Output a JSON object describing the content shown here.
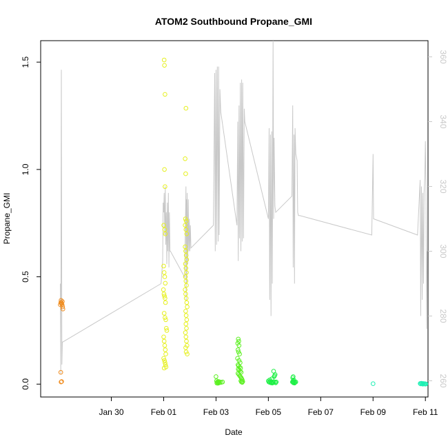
{
  "chart_data": {
    "type": "scatter",
    "title": "ATOM2 Southbound Propane_GMI",
    "xlabel": "Date",
    "ylabel": "Propane_GMI",
    "x_unit": "days after Jan 30",
    "xlim": [
      -2.7,
      12.1
    ],
    "ylim": [
      -0.06,
      1.6
    ],
    "x_ticks": [
      {
        "x": 0,
        "label": "Jan 30"
      },
      {
        "x": 2,
        "label": "Feb 01"
      },
      {
        "x": 4,
        "label": "Feb 03"
      },
      {
        "x": 6,
        "label": "Feb 05"
      },
      {
        "x": 8,
        "label": "Feb 07"
      },
      {
        "x": 10,
        "label": "Feb 09"
      },
      {
        "x": 12,
        "label": "Feb 11"
      }
    ],
    "y_ticks": [
      {
        "y": 0.0,
        "label": "0.0"
      },
      {
        "y": 0.5,
        "label": "0.5"
      },
      {
        "y": 1.0,
        "label": "1.0"
      },
      {
        "y": 1.5,
        "label": "1.5"
      }
    ],
    "y2_lim": [
      255,
      365
    ],
    "y2_ticks": [
      {
        "y": 260,
        "label": "260"
      },
      {
        "y": 280,
        "label": "280"
      },
      {
        "y": 300,
        "label": "300"
      },
      {
        "y": 320,
        "label": "320"
      },
      {
        "y": 340,
        "label": "340"
      },
      {
        "y": 360,
        "label": "360"
      }
    ],
    "grid": false,
    "colors": {
      "line": "#c8c8c8",
      "axis": "#000000",
      "right_axis": "#c8c8c8"
    },
    "series": [
      {
        "color": "#f08c1e",
        "points": [
          [
            -1.95,
            0.37
          ],
          [
            -1.93,
            0.38
          ],
          [
            -1.92,
            0.39
          ],
          [
            -1.91,
            0.38
          ],
          [
            -1.9,
            0.375
          ],
          [
            -1.88,
            0.37
          ],
          [
            -1.87,
            0.385
          ],
          [
            -1.86,
            0.36
          ],
          [
            -1.85,
            0.35
          ],
          [
            -1.93,
            0.055
          ],
          [
            -1.92,
            0.01
          ],
          [
            -1.9,
            0.012
          ]
        ]
      },
      {
        "color": "#e6f01e",
        "points": [
          [
            2.02,
            1.51
          ],
          [
            2.03,
            1.485
          ],
          [
            2.05,
            1.35
          ],
          [
            2.03,
            1.0
          ],
          [
            2.05,
            0.92
          ],
          [
            2.0,
            0.74
          ],
          [
            2.04,
            0.72
          ],
          [
            2.06,
            0.7
          ],
          [
            2.0,
            0.55
          ],
          [
            2.02,
            0.52
          ],
          [
            2.04,
            0.5
          ],
          [
            2.06,
            0.47
          ],
          [
            1.99,
            0.44
          ],
          [
            2.01,
            0.42
          ],
          [
            2.03,
            0.41
          ],
          [
            2.05,
            0.4
          ],
          [
            2.07,
            0.38
          ],
          [
            2.02,
            0.33
          ],
          [
            2.05,
            0.31
          ],
          [
            2.08,
            0.3
          ],
          [
            2.1,
            0.26
          ],
          [
            2.12,
            0.25
          ],
          [
            2.0,
            0.22
          ],
          [
            2.02,
            0.2
          ],
          [
            2.04,
            0.18
          ],
          [
            2.06,
            0.16
          ],
          [
            2.08,
            0.14
          ],
          [
            2.0,
            0.12
          ],
          [
            2.03,
            0.11
          ],
          [
            2.05,
            0.1
          ],
          [
            2.07,
            0.09
          ],
          [
            2.09,
            0.08
          ],
          [
            2.02,
            0.075
          ],
          [
            2.85,
            1.285
          ],
          [
            2.82,
            1.05
          ],
          [
            2.84,
            0.98
          ],
          [
            2.83,
            0.77
          ],
          [
            2.86,
            0.76
          ],
          [
            2.82,
            0.74
          ],
          [
            2.85,
            0.72
          ],
          [
            2.88,
            0.7
          ],
          [
            2.82,
            0.64
          ],
          [
            2.84,
            0.62
          ],
          [
            2.86,
            0.6
          ],
          [
            2.88,
            0.58
          ],
          [
            2.83,
            0.56
          ],
          [
            2.85,
            0.54
          ],
          [
            2.87,
            0.52
          ],
          [
            2.83,
            0.5
          ],
          [
            2.85,
            0.48
          ],
          [
            2.87,
            0.46
          ],
          [
            2.82,
            0.44
          ],
          [
            2.84,
            0.42
          ],
          [
            2.86,
            0.4
          ],
          [
            2.88,
            0.38
          ],
          [
            2.9,
            0.36
          ],
          [
            2.84,
            0.34
          ],
          [
            2.86,
            0.32
          ],
          [
            2.88,
            0.3
          ],
          [
            2.85,
            0.28
          ],
          [
            2.87,
            0.26
          ],
          [
            2.83,
            0.24
          ],
          [
            2.85,
            0.22
          ],
          [
            2.87,
            0.2
          ],
          [
            2.89,
            0.18
          ],
          [
            2.84,
            0.17
          ],
          [
            2.86,
            0.15
          ],
          [
            2.9,
            0.14
          ]
        ]
      },
      {
        "color": "#5af01e",
        "points": [
          [
            4.0,
            0.035
          ],
          [
            4.02,
            0.015
          ],
          [
            4.05,
            0.01
          ],
          [
            4.08,
            0.008
          ],
          [
            4.1,
            0.012
          ],
          [
            4.12,
            0.006
          ],
          [
            4.15,
            0.01
          ],
          [
            4.2,
            0.008
          ],
          [
            4.25,
            0.01
          ],
          [
            4.03,
            0.005
          ],
          [
            4.07,
            0.004
          ],
          [
            4.85,
            0.21
          ],
          [
            4.87,
            0.2
          ],
          [
            4.83,
            0.19
          ],
          [
            4.88,
            0.18
          ],
          [
            4.84,
            0.16
          ],
          [
            4.86,
            0.15
          ],
          [
            4.9,
            0.14
          ],
          [
            4.82,
            0.12
          ],
          [
            4.88,
            0.11
          ],
          [
            4.92,
            0.1
          ],
          [
            4.84,
            0.09
          ],
          [
            4.86,
            0.085
          ],
          [
            4.9,
            0.08
          ],
          [
            4.94,
            0.075
          ],
          [
            4.85,
            0.07
          ],
          [
            4.88,
            0.065
          ],
          [
            4.92,
            0.06
          ],
          [
            4.96,
            0.055
          ],
          [
            4.84,
            0.05
          ],
          [
            4.87,
            0.045
          ],
          [
            4.9,
            0.04
          ],
          [
            4.93,
            0.035
          ],
          [
            4.96,
            0.03
          ],
          [
            4.98,
            0.025
          ],
          [
            5.0,
            0.02
          ],
          [
            4.95,
            0.015
          ],
          [
            4.97,
            0.01
          ],
          [
            5.0,
            0.008
          ],
          [
            5.02,
            0.012
          ]
        ]
      },
      {
        "color": "#1ef046",
        "points": [
          [
            6.0,
            0.015
          ],
          [
            6.02,
            0.01
          ],
          [
            6.05,
            0.008
          ],
          [
            6.08,
            0.012
          ],
          [
            6.1,
            0.006
          ],
          [
            6.12,
            0.01
          ],
          [
            6.15,
            0.005
          ],
          [
            6.18,
            0.01
          ],
          [
            6.2,
            0.008
          ],
          [
            6.25,
            0.01
          ],
          [
            6.28,
            0.006
          ],
          [
            6.3,
            0.01
          ],
          [
            6.22,
            0.035
          ],
          [
            6.24,
            0.04
          ],
          [
            6.2,
            0.06
          ],
          [
            6.26,
            0.045
          ],
          [
            6.06,
            0.02
          ],
          [
            6.14,
            0.025
          ],
          [
            6.95,
            0.035
          ],
          [
            6.93,
            0.03
          ],
          [
            6.97,
            0.02
          ],
          [
            6.95,
            0.015
          ],
          [
            6.92,
            0.01
          ],
          [
            6.94,
            0.008
          ],
          [
            6.96,
            0.006
          ],
          [
            6.98,
            0.01
          ],
          [
            7.0,
            0.005
          ],
          [
            7.02,
            0.008
          ],
          [
            7.05,
            0.01
          ]
        ]
      },
      {
        "color": "#1ef0b4",
        "points": [
          [
            10.0,
            0.002
          ],
          [
            11.8,
            0.003
          ],
          [
            11.82,
            0.001
          ],
          [
            11.85,
            0.004
          ],
          [
            11.88,
            0.002
          ],
          [
            11.9,
            0.0
          ],
          [
            11.92,
            0.003
          ],
          [
            11.95,
            0.001
          ],
          [
            11.98,
            0.002
          ],
          [
            12.0,
            0.0
          ],
          [
            12.02,
            0.001
          ]
        ]
      }
    ],
    "line_series": {
      "axis": "right",
      "color": "#c8c8c8",
      "points": [
        [
          -1.95,
          290
        ],
        [
          -1.93,
          262
        ],
        [
          -1.91,
          356
        ],
        [
          -1.89,
          265
        ],
        [
          -1.87,
          272
        ],
        [
          -1.85,
          272
        ],
        [
          1.9,
          290
        ],
        [
          1.96,
          297
        ],
        [
          1.98,
          315
        ],
        [
          2.0,
          312
        ],
        [
          2.02,
          318
        ],
        [
          2.04,
          305
        ],
        [
          2.06,
          320
        ],
        [
          2.08,
          302
        ],
        [
          2.1,
          312
        ],
        [
          2.12,
          296
        ],
        [
          2.14,
          315
        ],
        [
          2.16,
          300
        ],
        [
          2.18,
          318
        ],
        [
          2.2,
          295
        ],
        [
          2.22,
          312
        ],
        [
          2.24,
          300
        ],
        [
          2.26,
          300
        ],
        [
          2.8,
          292
        ],
        [
          2.85,
          320
        ],
        [
          2.86,
          285
        ],
        [
          2.87,
          316
        ],
        [
          2.88,
          290
        ],
        [
          2.9,
          318
        ],
        [
          2.92,
          296
        ],
        [
          2.94,
          316
        ],
        [
          2.96,
          300
        ],
        [
          2.98,
          310
        ],
        [
          3.0,
          300
        ],
        [
          3.02,
          308
        ],
        [
          3.04,
          301
        ],
        [
          3.9,
          308
        ],
        [
          3.95,
          355
        ],
        [
          3.97,
          300
        ],
        [
          4.0,
          356
        ],
        [
          4.02,
          302
        ],
        [
          4.05,
          357
        ],
        [
          4.08,
          303
        ],
        [
          4.1,
          357
        ],
        [
          4.12,
          305
        ],
        [
          4.15,
          350
        ],
        [
          4.18,
          343
        ],
        [
          4.2,
          342
        ],
        [
          4.8,
          308
        ],
        [
          4.83,
          340
        ],
        [
          4.85,
          297
        ],
        [
          4.88,
          345
        ],
        [
          4.9,
          304
        ],
        [
          4.93,
          352
        ],
        [
          4.95,
          300
        ],
        [
          4.98,
          353
        ],
        [
          5.0,
          303
        ],
        [
          5.02,
          352
        ],
        [
          5.05,
          304
        ],
        [
          5.08,
          344
        ],
        [
          5.1,
          340
        ],
        [
          6.0,
          310
        ],
        [
          6.03,
          338
        ],
        [
          6.05,
          285
        ],
        [
          6.08,
          336
        ],
        [
          6.1,
          280
        ],
        [
          6.13,
          337
        ],
        [
          6.15,
          290
        ],
        [
          6.18,
          365
        ],
        [
          6.2,
          310
        ],
        [
          6.22,
          335
        ],
        [
          6.25,
          314
        ],
        [
          6.28,
          312
        ],
        [
          6.9,
          317
        ],
        [
          6.93,
          345
        ],
        [
          6.95,
          295
        ],
        [
          6.98,
          336
        ],
        [
          7.0,
          290
        ],
        [
          7.02,
          338
        ],
        [
          7.05,
          330
        ],
        [
          7.1,
          328
        ],
        [
          7.12,
          312
        ],
        [
          7.15,
          311
        ],
        [
          7.2,
          311
        ],
        [
          9.95,
          305
        ],
        [
          10.0,
          330
        ],
        [
          10.02,
          310
        ],
        [
          11.7,
          305
        ],
        [
          11.8,
          322
        ],
        [
          11.82,
          280
        ],
        [
          11.85,
          320
        ],
        [
          11.88,
          285
        ],
        [
          11.9,
          318
        ],
        [
          11.93,
          290
        ],
        [
          11.95,
          318
        ],
        [
          11.98,
          323
        ],
        [
          12.0,
          334
        ],
        [
          12.02,
          320
        ],
        [
          12.05,
          276
        ],
        [
          12.07,
          300
        ]
      ]
    }
  }
}
